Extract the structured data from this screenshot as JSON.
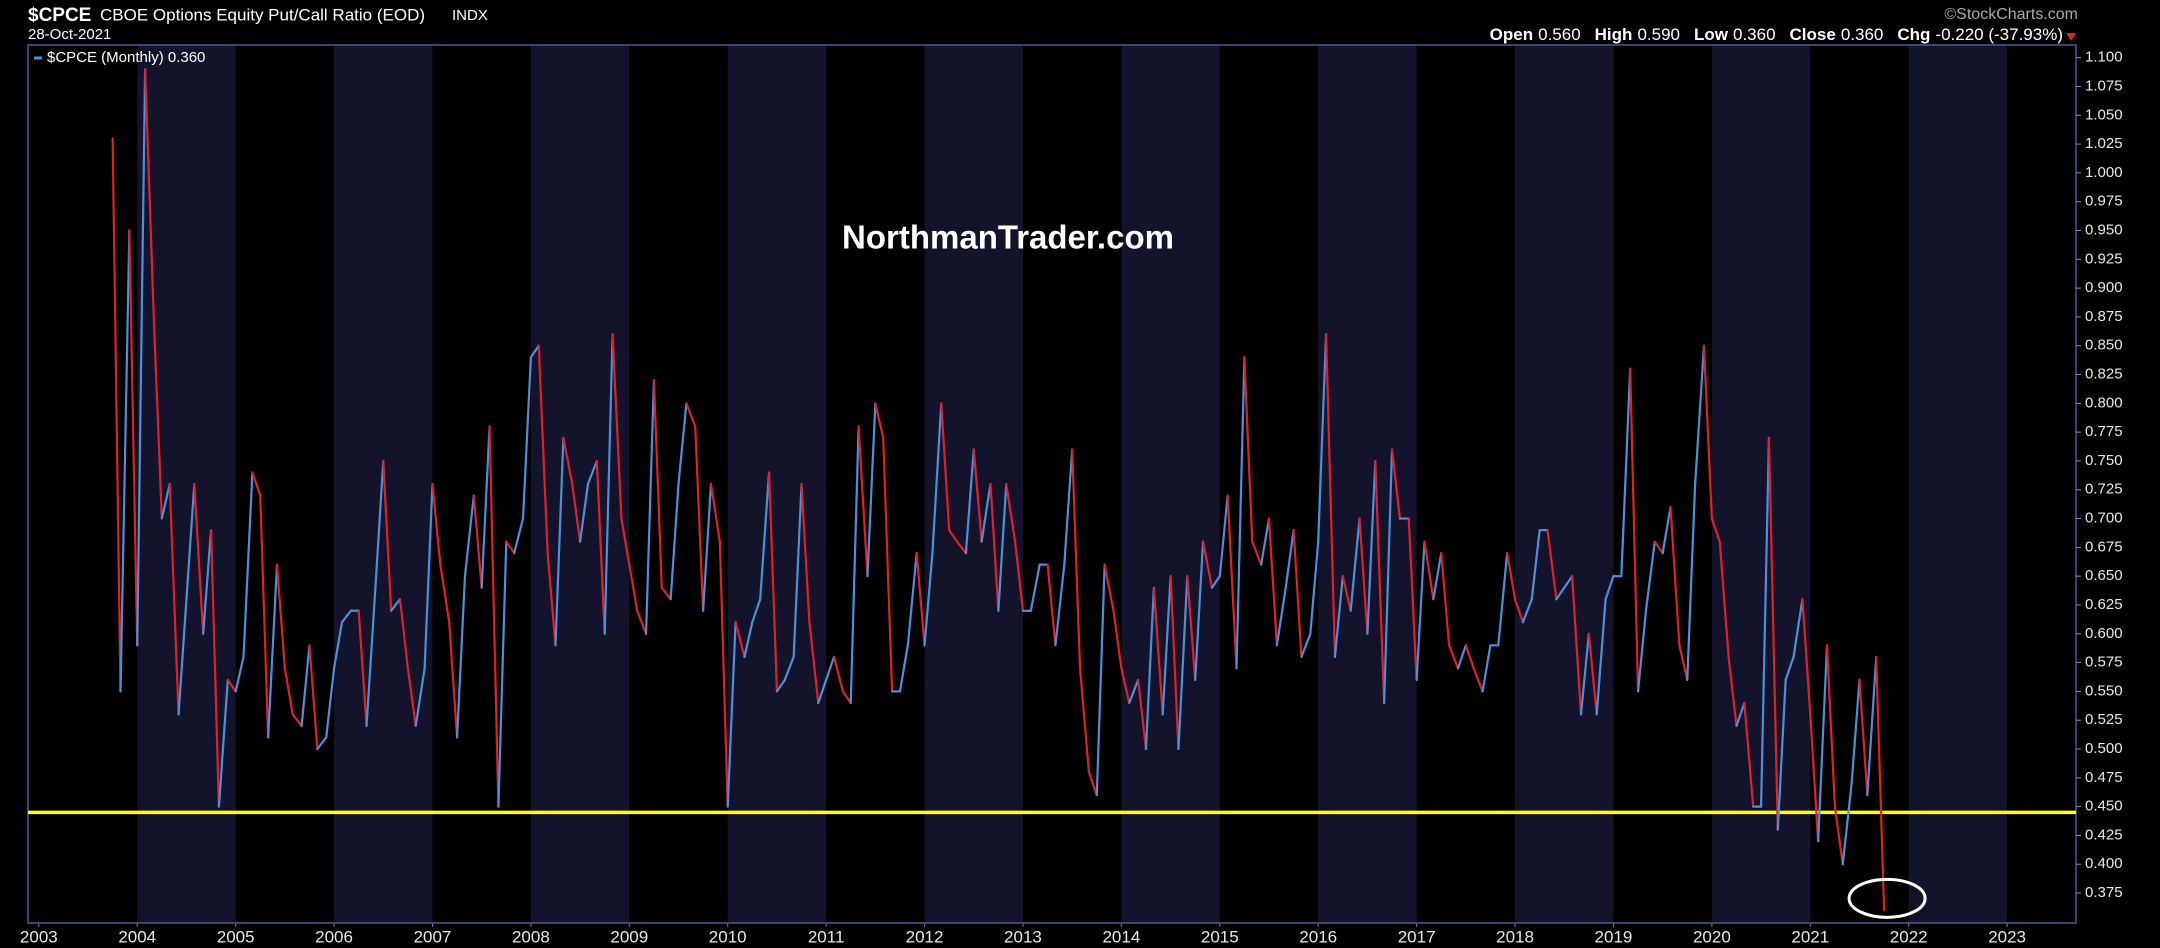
{
  "chart_data": {
    "type": "line",
    "symbol": "$CPCE",
    "title": "CBOE Options Equity Put/Call Ratio (EOD)",
    "exchange": "INDX",
    "date": "28-Oct-2021",
    "source": "©StockCharts.com",
    "quote": {
      "open_label": "Open",
      "open": "0.560",
      "high_label": "High",
      "high": "0.590",
      "low_label": "Low",
      "low": "0.360",
      "close_label": "Close",
      "close": "0.360",
      "chg_label": "Chg",
      "chg": "-0.220 (-37.93%)"
    },
    "watermark": "NorthmanTrader.com",
    "hline": {
      "value": 0.445,
      "color": "#ffff00"
    },
    "xlim": [
      2002.89,
      2023.7
    ],
    "ylim": [
      0.349,
      1.111
    ],
    "xticks": [
      2003,
      2004,
      2005,
      2006,
      2007,
      2008,
      2009,
      2010,
      2011,
      2012,
      2013,
      2014,
      2015,
      2016,
      2017,
      2018,
      2019,
      2020,
      2021,
      2022,
      2023
    ],
    "yticks": [
      {
        "value": 0.375,
        "label": "0.375"
      },
      {
        "value": 0.4,
        "label": "0.400"
      },
      {
        "value": 0.425,
        "label": "0.425"
      },
      {
        "value": 0.45,
        "label": "0.450"
      },
      {
        "value": 0.475,
        "label": "0.475"
      },
      {
        "value": 0.5,
        "label": "0.500"
      },
      {
        "value": 0.525,
        "label": "0.525"
      },
      {
        "value": 0.55,
        "label": "0.550"
      },
      {
        "value": 0.575,
        "label": "0.575"
      },
      {
        "value": 0.6,
        "label": "0.600"
      },
      {
        "value": 0.625,
        "label": "0.625"
      },
      {
        "value": 0.65,
        "label": "0.650"
      },
      {
        "value": 0.675,
        "label": "0.675"
      },
      {
        "value": 0.7,
        "label": "0.700"
      },
      {
        "value": 0.725,
        "label": "0.725"
      },
      {
        "value": 0.75,
        "label": "0.750"
      },
      {
        "value": 0.775,
        "label": "0.775"
      },
      {
        "value": 0.8,
        "label": "0.800"
      },
      {
        "value": 0.825,
        "label": "0.825"
      },
      {
        "value": 0.85,
        "label": "0.850"
      },
      {
        "value": 0.875,
        "label": "0.875"
      },
      {
        "value": 0.9,
        "label": "0.900"
      },
      {
        "value": 0.925,
        "label": "0.925"
      },
      {
        "value": 0.95,
        "label": "0.950"
      },
      {
        "value": 0.975,
        "label": "0.975"
      },
      {
        "value": 1.0,
        "label": "1.000"
      },
      {
        "value": 1.025,
        "label": "1.025"
      },
      {
        "value": 1.05,
        "label": "1.050"
      },
      {
        "value": 1.075,
        "label": "1.075"
      },
      {
        "value": 1.1,
        "label": "1.100"
      }
    ],
    "x": [
      2003.75,
      2003.83,
      2003.92,
      2004.0,
      2004.08,
      2004.17,
      2004.25,
      2004.33,
      2004.42,
      2004.5,
      2004.58,
      2004.67,
      2004.75,
      2004.83,
      2004.92,
      2005.0,
      2005.08,
      2005.17,
      2005.25,
      2005.33,
      2005.42,
      2005.5,
      2005.58,
      2005.67,
      2005.75,
      2005.83,
      2005.92,
      2006.0,
      2006.08,
      2006.17,
      2006.25,
      2006.33,
      2006.42,
      2006.5,
      2006.58,
      2006.67,
      2006.75,
      2006.83,
      2006.92,
      2007.0,
      2007.08,
      2007.17,
      2007.25,
      2007.33,
      2007.42,
      2007.5,
      2007.58,
      2007.67,
      2007.75,
      2007.83,
      2007.92,
      2008.0,
      2008.08,
      2008.17,
      2008.25,
      2008.33,
      2008.42,
      2008.5,
      2008.58,
      2008.67,
      2008.75,
      2008.83,
      2008.92,
      2009.0,
      2009.08,
      2009.17,
      2009.25,
      2009.33,
      2009.42,
      2009.5,
      2009.58,
      2009.67,
      2009.75,
      2009.83,
      2009.92,
      2010.0,
      2010.08,
      2010.17,
      2010.25,
      2010.33,
      2010.42,
      2010.5,
      2010.58,
      2010.67,
      2010.75,
      2010.83,
      2010.92,
      2011.0,
      2011.08,
      2011.17,
      2011.25,
      2011.33,
      2011.42,
      2011.5,
      2011.58,
      2011.67,
      2011.75,
      2011.83,
      2011.92,
      2012.0,
      2012.08,
      2012.17,
      2012.25,
      2012.33,
      2012.42,
      2012.5,
      2012.58,
      2012.67,
      2012.75,
      2012.83,
      2012.92,
      2013.0,
      2013.08,
      2013.17,
      2013.25,
      2013.33,
      2013.42,
      2013.5,
      2013.58,
      2013.67,
      2013.75,
      2013.83,
      2013.92,
      2014.0,
      2014.08,
      2014.17,
      2014.25,
      2014.33,
      2014.42,
      2014.5,
      2014.58,
      2014.67,
      2014.75,
      2014.83,
      2014.92,
      2015.0,
      2015.08,
      2015.17,
      2015.25,
      2015.33,
      2015.42,
      2015.5,
      2015.58,
      2015.67,
      2015.75,
      2015.83,
      2015.92,
      2016.0,
      2016.08,
      2016.17,
      2016.25,
      2016.33,
      2016.42,
      2016.5,
      2016.58,
      2016.67,
      2016.75,
      2016.83,
      2016.92,
      2017.0,
      2017.08,
      2017.17,
      2017.25,
      2017.33,
      2017.42,
      2017.5,
      2017.58,
      2017.67,
      2017.75,
      2017.83,
      2017.92,
      2018.0,
      2018.08,
      2018.17,
      2018.25,
      2018.33,
      2018.42,
      2018.5,
      2018.58,
      2018.67,
      2018.75,
      2018.83,
      2018.92,
      2019.0,
      2019.08,
      2019.17,
      2019.25,
      2019.33,
      2019.42,
      2019.5,
      2019.58,
      2019.67,
      2019.75,
      2019.83,
      2019.92,
      2020.0,
      2020.08,
      2020.17,
      2020.25,
      2020.33,
      2020.42,
      2020.5,
      2020.58,
      2020.67,
      2020.75,
      2020.83,
      2020.92,
      2021.0,
      2021.08,
      2021.17,
      2021.25,
      2021.33,
      2021.42,
      2021.5,
      2021.58,
      2021.67,
      2021.75
    ],
    "series": [
      {
        "name": "$CPCE (Monthly) 0.360",
        "color": "#4f8fd8",
        "down_color": "#e0202a",
        "values": [
          1.03,
          0.55,
          0.95,
          0.59,
          1.09,
          0.87,
          0.7,
          0.73,
          0.53,
          0.63,
          0.73,
          0.6,
          0.69,
          0.45,
          0.56,
          0.55,
          0.58,
          0.74,
          0.72,
          0.51,
          0.66,
          0.57,
          0.53,
          0.52,
          0.59,
          0.5,
          0.51,
          0.57,
          0.61,
          0.62,
          0.62,
          0.52,
          0.64,
          0.75,
          0.62,
          0.63,
          0.57,
          0.52,
          0.57,
          0.73,
          0.66,
          0.61,
          0.51,
          0.65,
          0.72,
          0.64,
          0.78,
          0.45,
          0.68,
          0.67,
          0.7,
          0.84,
          0.85,
          0.67,
          0.59,
          0.77,
          0.73,
          0.68,
          0.73,
          0.75,
          0.6,
          0.86,
          0.7,
          0.66,
          0.62,
          0.6,
          0.82,
          0.64,
          0.63,
          0.73,
          0.8,
          0.78,
          0.62,
          0.73,
          0.68,
          0.45,
          0.61,
          0.58,
          0.61,
          0.63,
          0.74,
          0.55,
          0.56,
          0.58,
          0.73,
          0.61,
          0.54,
          0.56,
          0.58,
          0.55,
          0.54,
          0.78,
          0.65,
          0.8,
          0.77,
          0.55,
          0.55,
          0.59,
          0.67,
          0.59,
          0.67,
          0.8,
          0.69,
          0.68,
          0.67,
          0.76,
          0.68,
          0.73,
          0.62,
          0.73,
          0.68,
          0.62,
          0.62,
          0.66,
          0.66,
          0.59,
          0.66,
          0.76,
          0.57,
          0.48,
          0.46,
          0.66,
          0.62,
          0.57,
          0.54,
          0.56,
          0.5,
          0.64,
          0.53,
          0.65,
          0.5,
          0.65,
          0.56,
          0.68,
          0.64,
          0.65,
          0.72,
          0.57,
          0.84,
          0.68,
          0.66,
          0.7,
          0.59,
          0.64,
          0.69,
          0.58,
          0.6,
          0.68,
          0.86,
          0.58,
          0.65,
          0.62,
          0.7,
          0.6,
          0.75,
          0.54,
          0.76,
          0.7,
          0.7,
          0.56,
          0.68,
          0.63,
          0.67,
          0.59,
          0.57,
          0.59,
          0.57,
          0.55,
          0.59,
          0.59,
          0.67,
          0.63,
          0.61,
          0.63,
          0.69,
          0.69,
          0.63,
          0.64,
          0.65,
          0.53,
          0.6,
          0.53,
          0.63,
          0.65,
          0.65,
          0.83,
          0.55,
          0.62,
          0.68,
          0.67,
          0.71,
          0.59,
          0.56,
          0.73,
          0.85,
          0.7,
          0.68,
          0.58,
          0.52,
          0.54,
          0.45,
          0.45,
          0.77,
          0.43,
          0.56,
          0.58,
          0.63,
          0.53,
          0.42,
          0.59,
          0.45,
          0.4,
          0.47,
          0.56,
          0.46,
          0.58,
          0.36
        ]
      }
    ]
  }
}
